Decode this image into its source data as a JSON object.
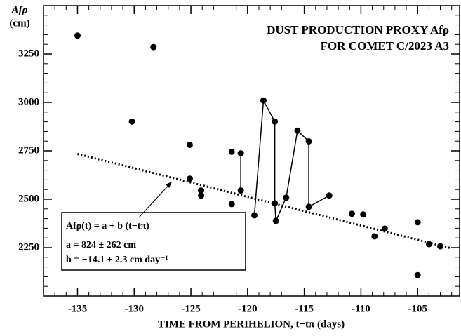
{
  "chart_data": {
    "type": "scatter",
    "title": "DUST PRODUCTION PROXY Afρ",
    "subtitle": "FOR COMET C/2023 A3",
    "y_label": "Afρ",
    "y_unit": "(cm)",
    "x_label": "TIME FROM PERIHELION, t−tπ (days)",
    "xlim": [
      -138,
      -101.3
    ],
    "ylim": [
      2000,
      3500
    ],
    "xticks": [
      -135,
      -130,
      -125,
      -120,
      -115,
      -110,
      -105
    ],
    "yticks": [
      2250,
      2500,
      2750,
      3000,
      3250
    ],
    "color": "#000000",
    "series": [
      {
        "connected": false,
        "x": [
          -135,
          -130.2,
          -128.3,
          -125.1,
          -125.1,
          -124.1,
          -124.1,
          -121.4,
          -121.4,
          -110.8,
          -109.8,
          -108.8,
          -107.9,
          -105,
          -105,
          -104.0,
          -103.0
        ],
        "values": [
          3345,
          2901,
          3286,
          2781,
          2606,
          2545,
          2519,
          2475,
          2745,
          2425,
          2421,
          2308,
          2348,
          2381,
          2108,
          2268,
          2257
        ]
      },
      {
        "connected": true,
        "x": [
          -120.6,
          -120.6
        ],
        "values": [
          2737,
          2545
        ]
      },
      {
        "connected": true,
        "x": [
          -119.4,
          -118.6,
          -117.6,
          -117.6,
          -117.5,
          -116.6,
          -115.6,
          -114.6,
          -114.6,
          -112.8
        ],
        "values": [
          2417,
          3010,
          2901,
          2479,
          2388,
          2508,
          2854,
          2799,
          2461,
          2519
        ]
      }
    ],
    "fit": {
      "x": [
        -135,
        -102
      ],
      "values": [
        2734,
        2246
      ]
    },
    "annotation": [
      "Afρ(t) = a + b (t−tπ)",
      "a = 824 ± 262 cm",
      "b = −14.1 ± 2.3 cm day⁻¹"
    ]
  }
}
